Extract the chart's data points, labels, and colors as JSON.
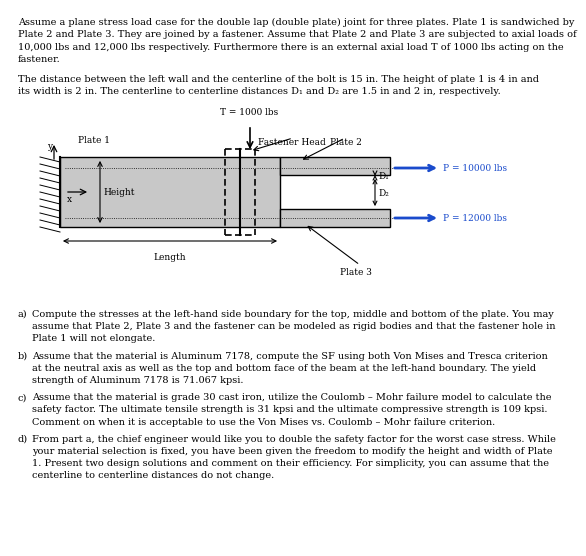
{
  "bg_color": "#ffffff",
  "text_color": "#000000",
  "plate_gray": "#c8c8c8",
  "blue": "#1a4bcc",
  "para1": [
    "Assume a plane stress load case for the double lap (double plate) joint for three plates. Plate 1 is sandwiched by",
    "Plate 2 and Plate 3. They are joined by a fastener. Assume that Plate 2 and Plate 3 are subjected to axial loads of",
    "10,000 lbs and 12,000 lbs respectively. Furthermore there is an external axial load T of 1000 lbs acting on the",
    "fastener."
  ],
  "para2": [
    "The distance between the left wall and the centerline of the bolt is 15 in. The height of plate 1 is 4 in and",
    "its width is 2 in. The centerline to centerline distances D₁ and D₂ are 1.5 in and 2 in, respectively."
  ],
  "qa_label": [
    "a)",
    "b)",
    "c)",
    "d)"
  ],
  "qa_lines": [
    [
      "Compute the stresses at the left-hand side boundary for the top, middle and bottom of the plate. You may",
      "assume that Plate 2, Plate 3 and the fastener can be modeled as rigid bodies and that the fastener hole in",
      "Plate 1 will not elongate."
    ],
    [
      "Assume that the material is Aluminum 7178, compute the SF using both Von Mises and Tresca criterion",
      "at the neutral axis as well as the top and bottom face of the beam at the left-hand boundary. The yield",
      "strength of Aluminum 7178 is 71.067 kpsi."
    ],
    [
      "Assume that the material is grade 30 cast iron, utilize the Coulomb – Mohr failure model to calculate the",
      "safety factor. The ultimate tensile strength is 31 kpsi and the ultimate compressive strength is 109 kpsi.",
      "Comment on when it is acceptable to use the Von Mises vs. Coulomb – Mohr failure criterion."
    ],
    [
      "From part a, the chief engineer would like you to double the safety factor for the worst case stress. While",
      "your material selection is fixed, you have been given the freedom to modify the height and width of Plate",
      "1. Present two design solutions and comment on their efficiency. For simplicity, you can assume that the",
      "centerline to centerline distances do not change."
    ]
  ],
  "font_size_text": 7.0,
  "font_size_small": 6.5
}
